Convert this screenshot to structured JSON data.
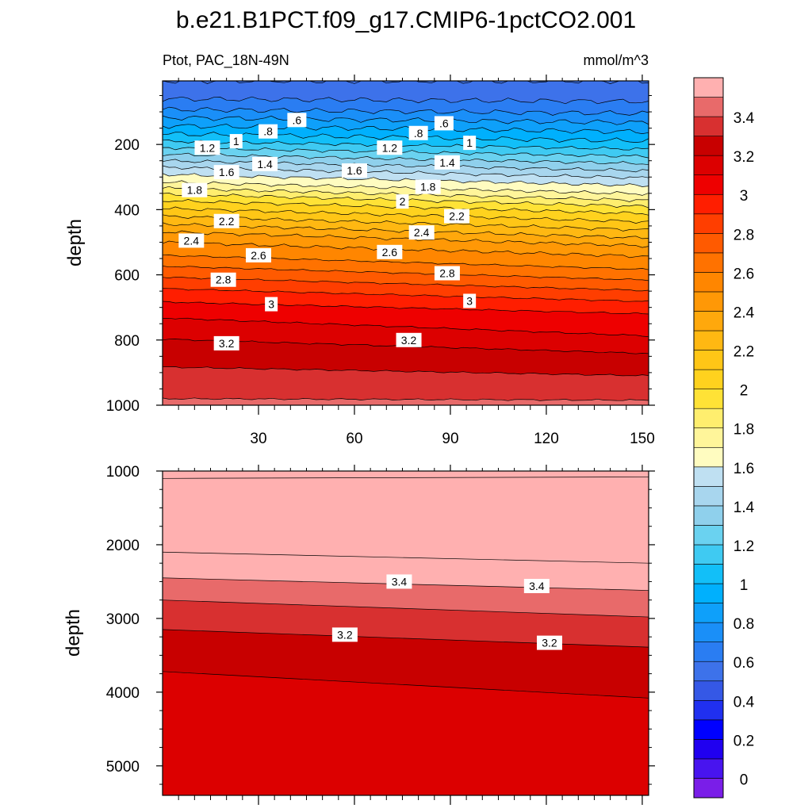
{
  "chart_data": [
    {
      "type": "heatmap",
      "panel": "upper",
      "title": "b.e21.B1PCT.f09_g17.CMIP6-1pctCO2.001",
      "left_string": "Ptot, PAC_18N-49N",
      "right_string": "mmol/m^3",
      "xlabel": "",
      "ylabel": "depth",
      "xlim": [
        0,
        152
      ],
      "ylim": [
        1000,
        5
      ],
      "xticks": [
        30,
        60,
        90,
        120,
        150
      ],
      "xtick_labels": [
        "30",
        "60",
        "90",
        "120",
        "150"
      ],
      "yticks": [
        200,
        400,
        600,
        800,
        1000
      ],
      "ytick_labels": [
        "200",
        "400",
        "600",
        "800",
        "1000"
      ],
      "contour_profile": {
        "depth": [
          5,
          40,
          80,
          130,
          180,
          230,
          280,
          320,
          360,
          420,
          480,
          540,
          600,
          660,
          720,
          780,
          840,
          900,
          960,
          1000
        ],
        "value": [
          0.5,
          0.55,
          0.65,
          0.85,
          1.05,
          1.3,
          1.55,
          1.72,
          1.95,
          2.2,
          2.45,
          2.6,
          2.78,
          2.95,
          3.08,
          3.18,
          3.25,
          3.32,
          3.38,
          3.42
        ]
      },
      "contour_labels": [
        {
          "x": 42,
          "y": 125,
          "text": ".6"
        },
        {
          "x": 88,
          "y": 135,
          "text": ".6"
        },
        {
          "x": 33,
          "y": 160,
          "text": ".8"
        },
        {
          "x": 80,
          "y": 165,
          "text": ".8"
        },
        {
          "x": 23,
          "y": 190,
          "text": "1"
        },
        {
          "x": 96,
          "y": 195,
          "text": "1"
        },
        {
          "x": 14,
          "y": 210,
          "text": "1.2"
        },
        {
          "x": 71,
          "y": 210,
          "text": "1.2"
        },
        {
          "x": 32,
          "y": 260,
          "text": "1.4"
        },
        {
          "x": 89,
          "y": 255,
          "text": "1.4"
        },
        {
          "x": 20,
          "y": 285,
          "text": "1.6"
        },
        {
          "x": 60,
          "y": 280,
          "text": "1.6"
        },
        {
          "x": 10,
          "y": 340,
          "text": "1.8"
        },
        {
          "x": 83,
          "y": 330,
          "text": "1.8"
        },
        {
          "x": 75,
          "y": 375,
          "text": "2"
        },
        {
          "x": 20,
          "y": 435,
          "text": "2.2"
        },
        {
          "x": 92,
          "y": 420,
          "text": "2.2"
        },
        {
          "x": 9,
          "y": 495,
          "text": "2.4"
        },
        {
          "x": 81,
          "y": 470,
          "text": "2.4"
        },
        {
          "x": 30,
          "y": 540,
          "text": "2.6"
        },
        {
          "x": 71,
          "y": 530,
          "text": "2.6"
        },
        {
          "x": 19,
          "y": 615,
          "text": "2.8"
        },
        {
          "x": 89,
          "y": 595,
          "text": "2.8"
        },
        {
          "x": 34,
          "y": 690,
          "text": "3"
        },
        {
          "x": 96,
          "y": 680,
          "text": "3"
        },
        {
          "x": 20,
          "y": 810,
          "text": "3.2"
        },
        {
          "x": 77,
          "y": 800,
          "text": "3.2"
        }
      ]
    },
    {
      "type": "heatmap",
      "panel": "lower",
      "xlabel": "",
      "ylabel": "depth",
      "xlim": [
        0,
        152
      ],
      "ylim": [
        5400,
        1000
      ],
      "xticks": [
        30,
        60,
        90,
        120,
        150
      ],
      "yticks": [
        1000,
        2000,
        3000,
        4000,
        5000
      ],
      "ytick_labels": [
        "1000",
        "2000",
        "3000",
        "4000",
        "5000"
      ],
      "bands": [
        {
          "level": 3.5,
          "top": [
            1000,
            1000
          ],
          "bottom": [
            1100,
            1080
          ]
        },
        {
          "level": 3.6,
          "top": [
            1100,
            1080
          ],
          "bottom": [
            2100,
            2250
          ]
        },
        {
          "level": 3.5,
          "top": [
            2100,
            2250
          ],
          "bottom": [
            2450,
            2620
          ]
        },
        {
          "level": 3.4,
          "top": [
            2450,
            2620
          ],
          "bottom": [
            2750,
            2980
          ]
        },
        {
          "level": 3.3,
          "top": [
            2750,
            2980
          ],
          "bottom": [
            3150,
            3390
          ]
        },
        {
          "level": 3.2,
          "top": [
            3150,
            3390
          ],
          "bottom": [
            3720,
            4080
          ]
        },
        {
          "level": 3.1,
          "top": [
            3720,
            4080
          ],
          "bottom": [
            5400,
            5400
          ]
        }
      ],
      "contour_labels": [
        {
          "x": 74,
          "y": 2500,
          "text": "3.4"
        },
        {
          "x": 117,
          "y": 2560,
          "text": "3.4"
        },
        {
          "x": 57,
          "y": 3220,
          "text": "3.2"
        },
        {
          "x": 121,
          "y": 3330,
          "text": "3.2"
        }
      ]
    },
    {
      "type": "colorbar",
      "levels": [
        0,
        0.1,
        0.2,
        0.3,
        0.4,
        0.5,
        0.6,
        0.7,
        0.8,
        0.9,
        1,
        1.1,
        1.2,
        1.3,
        1.4,
        1.5,
        1.6,
        1.7,
        1.8,
        1.9,
        2,
        2.1,
        2.2,
        2.3,
        2.4,
        2.5,
        2.6,
        2.7,
        2.8,
        2.9,
        3,
        3.1,
        3.2,
        3.3,
        3.4,
        3.5
      ],
      "labels": [
        "0",
        "0.2",
        "0.4",
        "0.6",
        "0.8",
        "1",
        "1.2",
        "1.4",
        "1.6",
        "1.8",
        "2",
        "2.2",
        "2.4",
        "2.6",
        "2.8",
        "3",
        "3.2",
        "3.4"
      ],
      "colors": [
        "#7a1ee8",
        "#4814ef",
        "#2000f0",
        "#0000ff",
        "#2030f0",
        "#3558e6",
        "#3d72ea",
        "#2a7df2",
        "#1a8ff8",
        "#0ea0fa",
        "#00b0fd",
        "#12bff8",
        "#3fcaf2",
        "#6ad2f0",
        "#8fd0ec",
        "#a8d6ee",
        "#bfe0f2",
        "#fffcc0",
        "#fff59a",
        "#ffee6e",
        "#ffe236",
        "#ffd21e",
        "#ffc616",
        "#ffb812",
        "#ffa80c",
        "#ff9806",
        "#ff8600",
        "#ff7200",
        "#ff5a00",
        "#ff3e00",
        "#ff1e00",
        "#ee0000",
        "#dc0000",
        "#c80000",
        "#d83030",
        "#e86a6a",
        "#ffb0b0"
      ]
    }
  ]
}
